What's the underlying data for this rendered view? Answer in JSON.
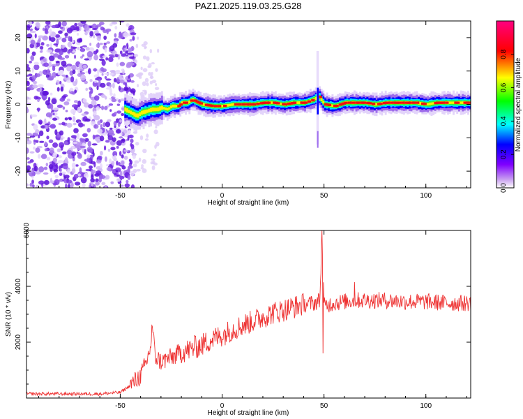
{
  "title": "PAZ1.2025.119.03.25.G28",
  "chart_data": [
    {
      "type": "heatmap",
      "xlabel": "Height of straight line (km)",
      "ylabel": "Frequency (Hz)",
      "xlim": [
        -96,
        122
      ],
      "ylim": [
        -25,
        25
      ],
      "xticks": [
        -50,
        0,
        50,
        100
      ],
      "xtick_labels": [
        "-50",
        "0",
        "50",
        "100"
      ],
      "yticks": [
        -20,
        -10,
        0,
        10,
        20
      ],
      "ytick_labels": [
        "-20",
        "-10",
        "0",
        "10",
        "20"
      ],
      "colorbar": {
        "label": "Normalized spectral amplitude",
        "range": [
          0,
          1
        ],
        "ticks": [
          0.0,
          0.2,
          0.4,
          0.6,
          0.8
        ],
        "tick_labels": [
          "0.0",
          "0.2",
          "0.4",
          "0.6",
          "0.8"
        ],
        "colormap": [
          "#ffffff",
          "#8a2be2",
          "#0000ff",
          "#00ffff",
          "#00ff00",
          "#ffff00",
          "#ff0000",
          "#ff00ff"
        ]
      },
      "ridge": {
        "x": [
          -48,
          -45,
          -42,
          -40,
          -37,
          -35,
          -32,
          -30,
          -27,
          -25,
          -22,
          -20,
          -17,
          -15,
          -12,
          -10,
          -5,
          0,
          5,
          10,
          15,
          20,
          25,
          30,
          35,
          40,
          45,
          47,
          50,
          55,
          60,
          65,
          70,
          75,
          80,
          85,
          90,
          95,
          100,
          105,
          110,
          115,
          120
        ],
        "freq": [
          -1.5,
          -2.5,
          -3.5,
          -2.5,
          -2.0,
          -1.5,
          -1.5,
          -1.0,
          -1.5,
          -0.5,
          -0.5,
          0.5,
          0.5,
          1.5,
          0.5,
          0,
          -0.5,
          -0.5,
          0,
          0,
          0,
          0.5,
          0.5,
          0,
          0.5,
          0.5,
          1.5,
          2.5,
          0,
          -0.5,
          0.5,
          0.5,
          0.5,
          0,
          0.5,
          0.5,
          0.5,
          0.5,
          0,
          0.5,
          0.5,
          0.5,
          0.5
        ]
      },
      "noise_region_x": [
        -96,
        -43
      ]
    },
    {
      "type": "line",
      "xlabel": "Height of straight line (km)",
      "ylabel": "SNR (10 * v/v)",
      "xlim": [
        -96,
        122
      ],
      "ylim": [
        0,
        6000
      ],
      "xticks": [
        -50,
        0,
        50,
        100
      ],
      "xtick_labels": [
        "-50",
        "0",
        "50",
        "100"
      ],
      "yticks": [
        2000,
        4000,
        6000
      ],
      "ytick_labels": [
        "2000",
        "4000",
        "6000"
      ],
      "color": "#ee3333",
      "x": [
        -96,
        -80,
        -60,
        -50,
        -45,
        -40,
        -37,
        -35,
        -34,
        -33,
        -30,
        -25,
        -20,
        -15,
        -10,
        -5,
        0,
        5,
        10,
        15,
        20,
        25,
        30,
        35,
        40,
        45,
        48,
        49,
        50,
        55,
        60,
        65,
        70,
        75,
        80,
        90,
        100,
        110,
        120
      ],
      "y": [
        150,
        150,
        150,
        200,
        450,
        800,
        1300,
        1900,
        2500,
        1500,
        1300,
        1450,
        1650,
        1750,
        1900,
        2100,
        2250,
        2450,
        2600,
        2750,
        2900,
        3050,
        3150,
        3250,
        3350,
        3400,
        3500,
        6000,
        3300,
        3400,
        3450,
        3500,
        3500,
        3500,
        3500,
        3450,
        3450,
        3400,
        3400
      ],
      "spikes": [
        {
          "x": -34.5,
          "y": 2600
        },
        {
          "x": -13.5,
          "y": 2250
        },
        {
          "x": 49,
          "y": 6000
        },
        {
          "x": 49.5,
          "y": 1600
        },
        {
          "x": 65,
          "y": 4150
        }
      ]
    }
  ]
}
